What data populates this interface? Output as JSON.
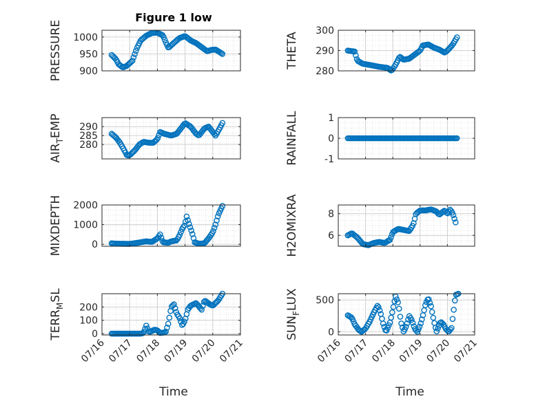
{
  "figure": {
    "title": "Figure 1 low",
    "xlabel": "Time"
  },
  "style": {
    "marker_color": "#0072BD",
    "axis_color": "#262626",
    "grid_color": "#dcdcdc"
  },
  "chart_data": [
    {
      "type": "scatter",
      "ylabel": "PRESSURE",
      "ylim": [
        900,
        1020
      ],
      "yticks": [
        900,
        950,
        1000
      ],
      "yticklabels": [
        "900",
        "950",
        "1000"
      ],
      "xlim": [
        0,
        5
      ],
      "xticks": [
        0,
        1,
        2,
        3,
        4,
        5
      ],
      "xticklabels": [
        "07/16",
        "07/17",
        "07/18",
        "07/19",
        "07/20",
        "07/21"
      ],
      "show_xticklabels": false,
      "keyframes": [
        [
          0.35,
          947
        ],
        [
          0.5,
          935
        ],
        [
          0.6,
          920
        ],
        [
          0.75,
          910
        ],
        [
          0.9,
          915
        ],
        [
          1.1,
          930
        ],
        [
          1.25,
          965
        ],
        [
          1.4,
          990
        ],
        [
          1.6,
          1004
        ],
        [
          1.8,
          1012
        ],
        [
          2.0,
          1013
        ],
        [
          2.2,
          1005
        ],
        [
          2.3,
          985
        ],
        [
          2.4,
          968
        ],
        [
          2.6,
          983
        ],
        [
          2.8,
          997
        ],
        [
          3.0,
          1003
        ],
        [
          3.2,
          990
        ],
        [
          3.4,
          982
        ],
        [
          3.6,
          970
        ],
        [
          3.8,
          958
        ],
        [
          3.95,
          962
        ],
        [
          4.1,
          963
        ],
        [
          4.2,
          958
        ],
        [
          4.35,
          950
        ]
      ]
    },
    {
      "type": "scatter",
      "ylabel": "THETA",
      "ylim": [
        280,
        300
      ],
      "yticks": [
        280,
        290,
        300
      ],
      "yticklabels": [
        "280",
        "290",
        "300"
      ],
      "xlim": [
        0,
        5
      ],
      "xticks": [
        0,
        1,
        2,
        3,
        4,
        5
      ],
      "xticklabels": [
        "07/16",
        "07/17",
        "07/18",
        "07/19",
        "07/20",
        "07/21"
      ],
      "show_xticklabels": false,
      "keyframes": [
        [
          0.35,
          290
        ],
        [
          0.6,
          289.5
        ],
        [
          0.7,
          285
        ],
        [
          0.9,
          283.5
        ],
        [
          1.2,
          282.8
        ],
        [
          1.5,
          282
        ],
        [
          1.8,
          281.5
        ],
        [
          1.95,
          280
        ],
        [
          2.1,
          283
        ],
        [
          2.25,
          287
        ],
        [
          2.4,
          285.5
        ],
        [
          2.6,
          286
        ],
        [
          2.8,
          288
        ],
        [
          3.0,
          290
        ],
        [
          3.1,
          292.5
        ],
        [
          3.3,
          293
        ],
        [
          3.5,
          291.5
        ],
        [
          3.7,
          290.5
        ],
        [
          3.9,
          289
        ],
        [
          4.0,
          290
        ],
        [
          4.2,
          293
        ],
        [
          4.35,
          296.5
        ]
      ]
    },
    {
      "type": "scatter",
      "ylabel": "AIR_TEMP",
      "ylim": [
        272,
        295
      ],
      "yticks": [
        280,
        285,
        290
      ],
      "yticklabels": [
        "280",
        "285",
        "290"
      ],
      "xlim": [
        0,
        5
      ],
      "xticks": [
        0,
        1,
        2,
        3,
        4,
        5
      ],
      "xticklabels": [
        "07/16",
        "07/17",
        "07/18",
        "07/19",
        "07/20",
        "07/21"
      ],
      "show_xticklabels": false,
      "keyframes": [
        [
          0.35,
          286
        ],
        [
          0.5,
          284
        ],
        [
          0.65,
          281
        ],
        [
          0.8,
          277
        ],
        [
          0.9,
          274
        ],
        [
          1.0,
          274
        ],
        [
          1.2,
          277
        ],
        [
          1.35,
          280
        ],
        [
          1.5,
          281.5
        ],
        [
          1.7,
          281
        ],
        [
          1.85,
          281
        ],
        [
          2.0,
          283
        ],
        [
          2.1,
          287
        ],
        [
          2.25,
          286
        ],
        [
          2.5,
          285
        ],
        [
          2.7,
          286
        ],
        [
          2.85,
          289
        ],
        [
          3.0,
          292
        ],
        [
          3.2,
          290
        ],
        [
          3.4,
          286
        ],
        [
          3.5,
          285
        ],
        [
          3.7,
          289
        ],
        [
          3.85,
          290
        ],
        [
          4.0,
          287
        ],
        [
          4.1,
          285
        ],
        [
          4.25,
          289
        ],
        [
          4.35,
          292
        ]
      ]
    },
    {
      "type": "scatter",
      "ylabel": "RAINFALL",
      "ylim": [
        -1,
        1
      ],
      "yticks": [
        -1,
        0,
        1
      ],
      "yticklabels": [
        "-1",
        "0",
        "1"
      ],
      "xlim": [
        0,
        5
      ],
      "xticks": [
        0,
        1,
        2,
        3,
        4,
        5
      ],
      "xticklabels": [
        "07/16",
        "07/17",
        "07/18",
        "07/19",
        "07/20",
        "07/21"
      ],
      "show_xticklabels": false,
      "keyframes": [
        [
          0.35,
          0
        ],
        [
          4.35,
          0
        ]
      ]
    },
    {
      "type": "scatter",
      "ylabel": "MIXDEPTH",
      "ylim": [
        -100,
        2000
      ],
      "yticks": [
        0,
        1000,
        2000
      ],
      "yticklabels": [
        "0",
        "1000",
        "2000"
      ],
      "xlim": [
        0,
        5
      ],
      "xticks": [
        0,
        1,
        2,
        3,
        4,
        5
      ],
      "xticklabels": [
        "07/16",
        "07/17",
        "07/18",
        "07/19",
        "07/20",
        "07/21"
      ],
      "show_xticklabels": false,
      "keyframes": [
        [
          0.35,
          50
        ],
        [
          0.5,
          30
        ],
        [
          1.0,
          20
        ],
        [
          1.3,
          80
        ],
        [
          1.6,
          150
        ],
        [
          1.8,
          120
        ],
        [
          2.0,
          300
        ],
        [
          2.1,
          500
        ],
        [
          2.2,
          100
        ],
        [
          2.4,
          80
        ],
        [
          2.5,
          150
        ],
        [
          2.7,
          200
        ],
        [
          2.8,
          450
        ],
        [
          2.9,
          800
        ],
        [
          3.0,
          1000
        ],
        [
          3.05,
          1450
        ],
        [
          3.15,
          1000
        ],
        [
          3.25,
          600
        ],
        [
          3.35,
          100
        ],
        [
          3.5,
          30
        ],
        [
          3.7,
          50
        ],
        [
          3.85,
          300
        ],
        [
          4.0,
          600
        ],
        [
          4.1,
          1000
        ],
        [
          4.2,
          1500
        ],
        [
          4.35,
          1950
        ]
      ]
    },
    {
      "type": "scatter",
      "ylabel": "H2OMIXRA",
      "ylim": [
        5,
        8.8
      ],
      "yticks": [
        6,
        8
      ],
      "yticklabels": [
        "6",
        "8"
      ],
      "xlim": [
        0,
        5
      ],
      "xticks": [
        0,
        1,
        2,
        3,
        4,
        5
      ],
      "xticklabels": [
        "07/16",
        "07/17",
        "07/18",
        "07/19",
        "07/20",
        "07/21"
      ],
      "show_xticklabels": false,
      "keyframes": [
        [
          0.35,
          6.0
        ],
        [
          0.5,
          6.2
        ],
        [
          0.7,
          5.8
        ],
        [
          0.9,
          5.2
        ],
        [
          1.1,
          5.1
        ],
        [
          1.3,
          5.3
        ],
        [
          1.5,
          5.4
        ],
        [
          1.7,
          5.3
        ],
        [
          1.9,
          5.6
        ],
        [
          2.0,
          6.3
        ],
        [
          2.2,
          6.6
        ],
        [
          2.4,
          6.5
        ],
        [
          2.6,
          6.4
        ],
        [
          2.75,
          7.0
        ],
        [
          2.85,
          8.0
        ],
        [
          3.0,
          8.3
        ],
        [
          3.2,
          8.3
        ],
        [
          3.4,
          8.4
        ],
        [
          3.6,
          8.2
        ],
        [
          3.7,
          7.9
        ],
        [
          3.8,
          8.1
        ],
        [
          3.9,
          8.3
        ],
        [
          4.0,
          8.0
        ],
        [
          4.1,
          8.4
        ],
        [
          4.2,
          8.0
        ],
        [
          4.3,
          7.2
        ]
      ]
    },
    {
      "type": "scatter",
      "ylabel": "TERR_MSL",
      "ylim": [
        -10,
        300
      ],
      "yticks": [
        0,
        100,
        200
      ],
      "yticklabels": [
        "0",
        "100",
        "200"
      ],
      "xlim": [
        0,
        5
      ],
      "xticks": [
        0,
        1,
        2,
        3,
        4,
        5
      ],
      "xticklabels": [
        "07/16",
        "07/17",
        "07/18",
        "07/19",
        "07/20",
        "07/21"
      ],
      "show_xticklabels": true,
      "keyframes": [
        [
          0.35,
          0
        ],
        [
          1.4,
          0
        ],
        [
          1.5,
          5
        ],
        [
          1.6,
          60
        ],
        [
          1.7,
          10
        ],
        [
          1.9,
          30
        ],
        [
          2.0,
          25
        ],
        [
          2.1,
          5
        ],
        [
          2.3,
          10
        ],
        [
          2.4,
          80
        ],
        [
          2.5,
          200
        ],
        [
          2.6,
          220
        ],
        [
          2.7,
          150
        ],
        [
          2.8,
          120
        ],
        [
          2.9,
          60
        ],
        [
          3.0,
          100
        ],
        [
          3.1,
          180
        ],
        [
          3.2,
          210
        ],
        [
          3.4,
          230
        ],
        [
          3.6,
          180
        ],
        [
          3.7,
          250
        ],
        [
          3.9,
          220
        ],
        [
          4.0,
          210
        ],
        [
          4.1,
          230
        ],
        [
          4.2,
          250
        ],
        [
          4.35,
          300
        ]
      ]
    },
    {
      "type": "scatter",
      "ylabel": "SUN_FLUX",
      "ylim": [
        -50,
        600
      ],
      "yticks": [
        0,
        500
      ],
      "yticklabels": [
        "0",
        "500"
      ],
      "xlim": [
        0,
        5
      ],
      "xticks": [
        0,
        1,
        2,
        3,
        4,
        5
      ],
      "xticklabels": [
        "07/16",
        "07/17",
        "07/18",
        "07/19",
        "07/20",
        "07/21"
      ],
      "show_xticklabels": true,
      "keyframes": [
        [
          0.35,
          260
        ],
        [
          0.5,
          220
        ],
        [
          0.6,
          120
        ],
        [
          0.75,
          30
        ],
        [
          0.85,
          0
        ],
        [
          1.0,
          50
        ],
        [
          1.15,
          160
        ],
        [
          1.3,
          300
        ],
        [
          1.45,
          420
        ],
        [
          1.55,
          300
        ],
        [
          1.65,
          120
        ],
        [
          1.75,
          0
        ],
        [
          1.9,
          150
        ],
        [
          2.0,
          350
        ],
        [
          2.1,
          560
        ],
        [
          2.2,
          450
        ],
        [
          2.3,
          150
        ],
        [
          2.4,
          0
        ],
        [
          2.5,
          100
        ],
        [
          2.6,
          250
        ],
        [
          2.7,
          180
        ],
        [
          2.8,
          50
        ],
        [
          2.9,
          0
        ],
        [
          3.0,
          100
        ],
        [
          3.1,
          250
        ],
        [
          3.2,
          440
        ],
        [
          3.3,
          530
        ],
        [
          3.4,
          400
        ],
        [
          3.5,
          180
        ],
        [
          3.6,
          0
        ],
        [
          3.75,
          160
        ],
        [
          3.85,
          120
        ],
        [
          3.95,
          40
        ],
        [
          4.05,
          0
        ],
        [
          4.15,
          60
        ],
        [
          4.3,
          580
        ],
        [
          4.4,
          600
        ]
      ]
    }
  ]
}
